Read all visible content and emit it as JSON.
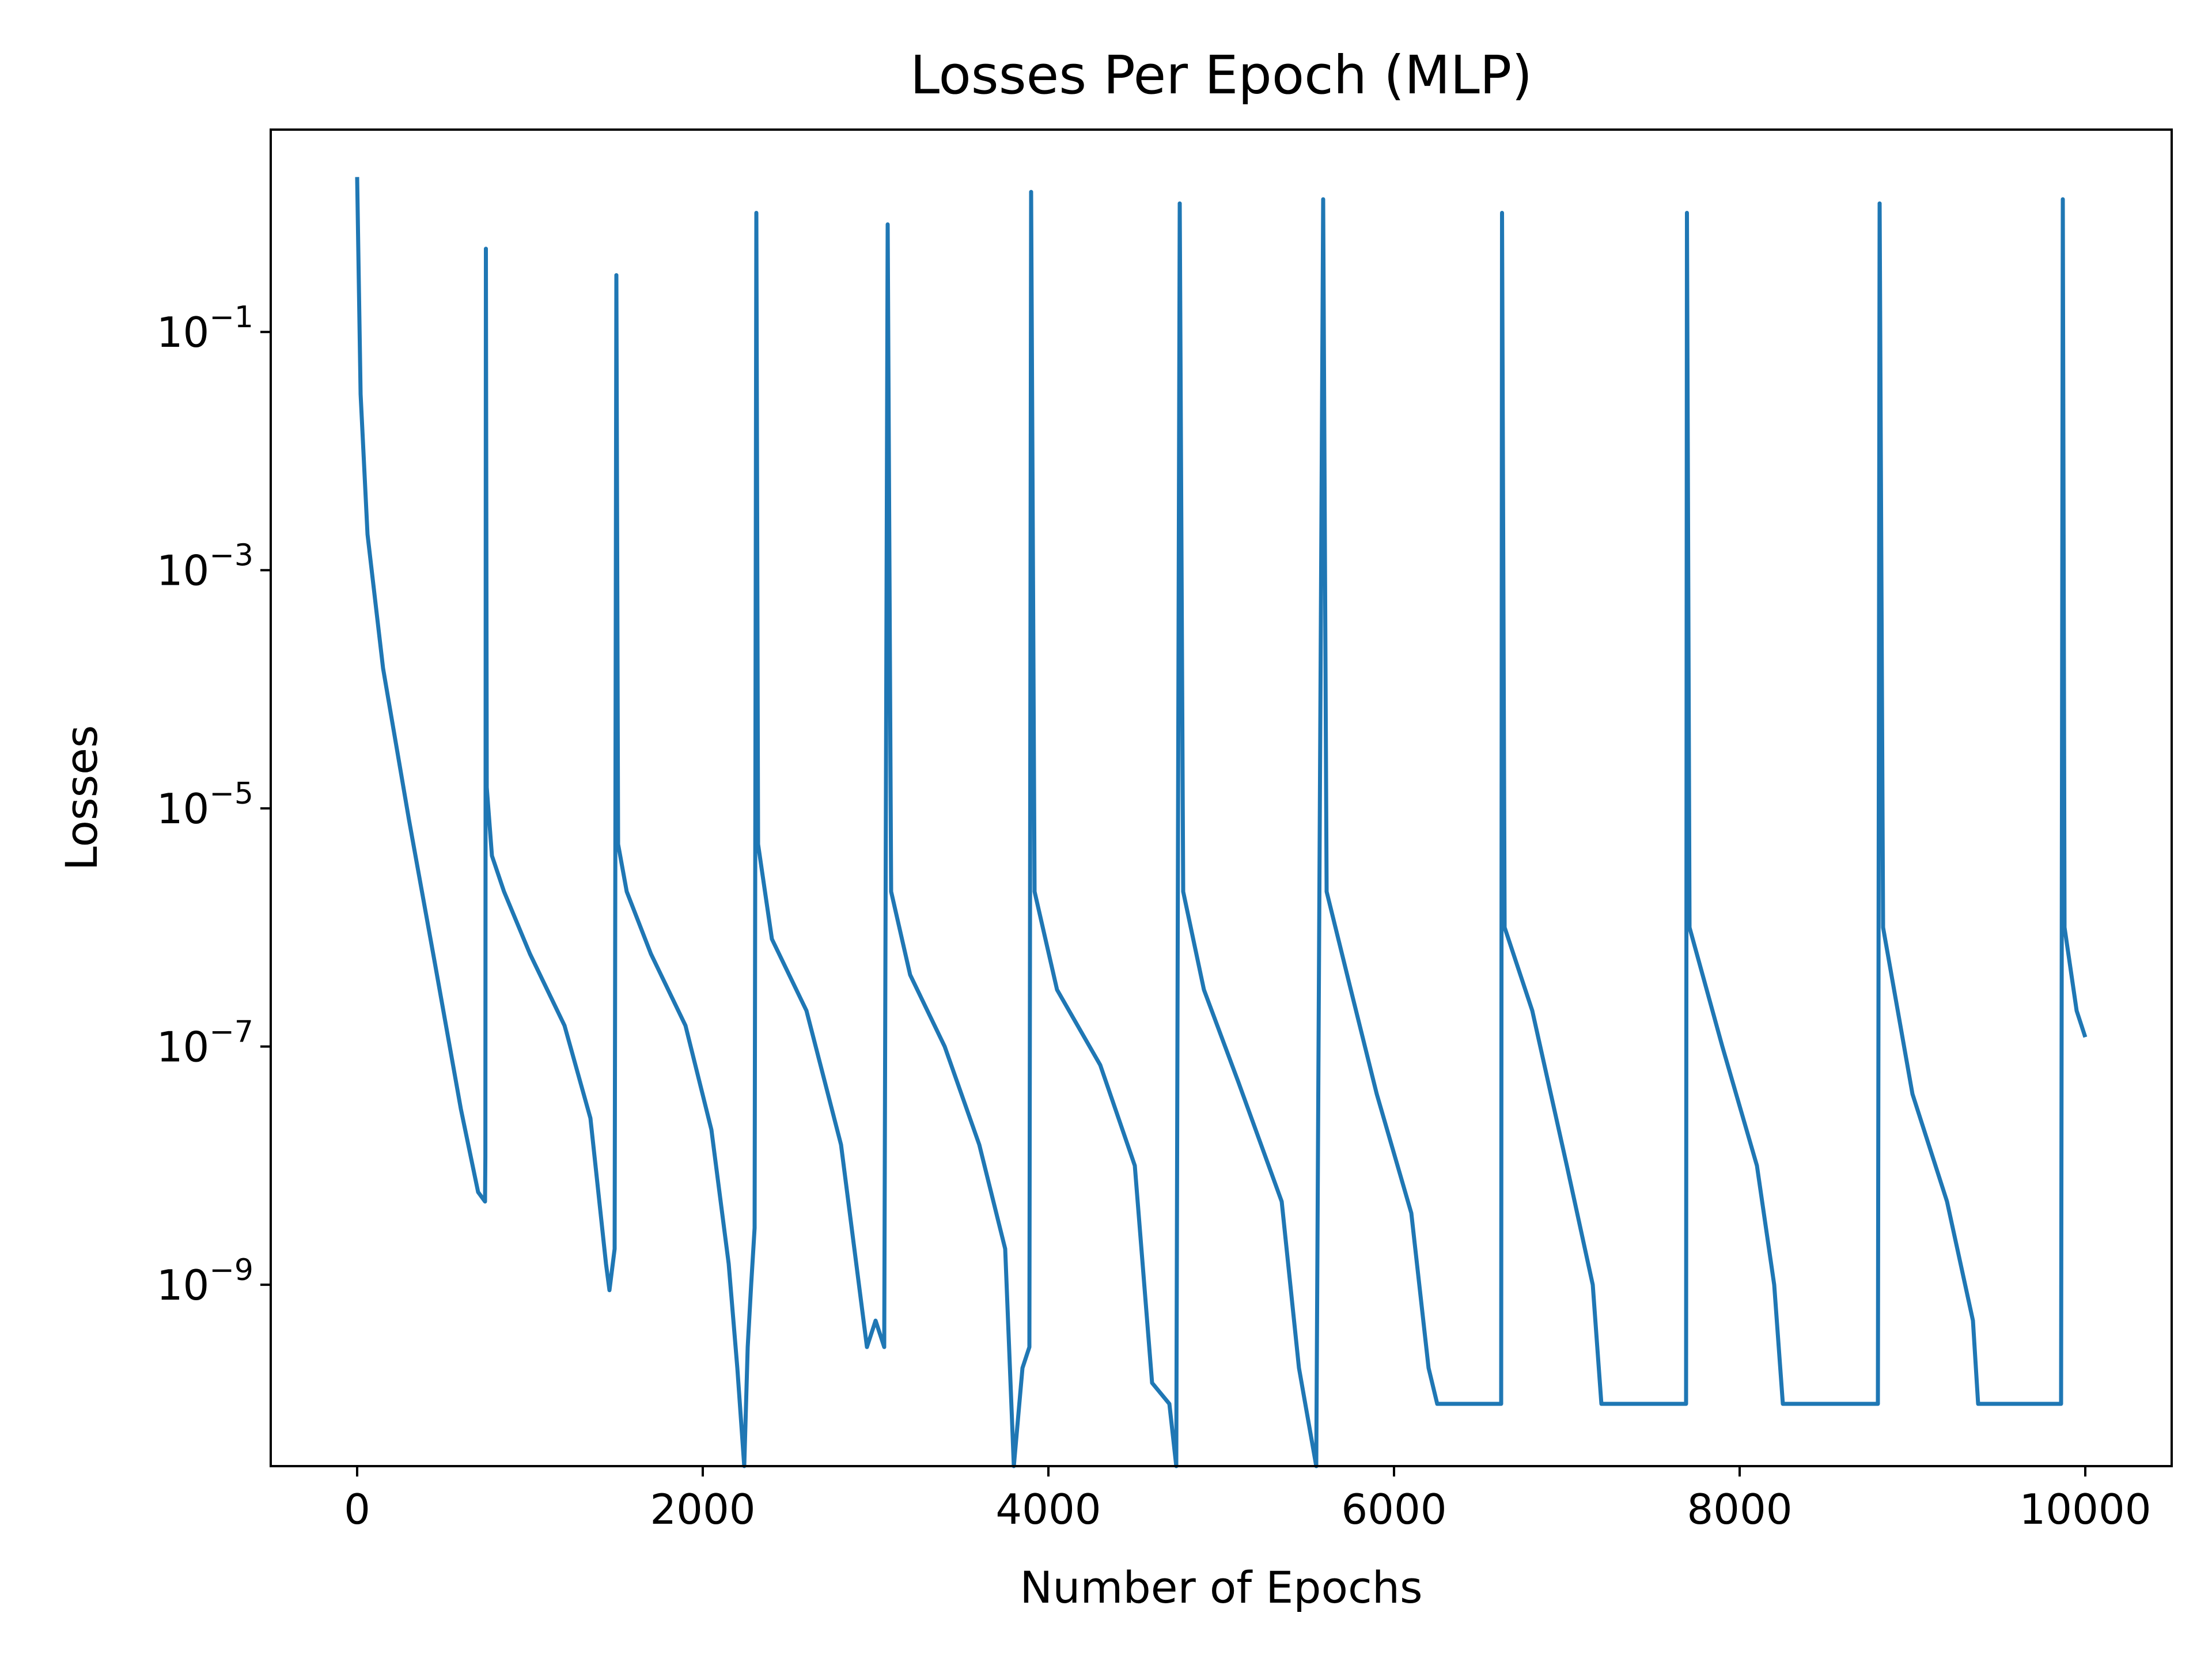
{
  "chart_data": {
    "type": "line",
    "title": "Losses Per Epoch (MLP)",
    "xlabel": "Number of Epochs",
    "ylabel": "Losses",
    "xscale": "linear",
    "yscale": "log",
    "xlim": [
      -500,
      10500
    ],
    "ylim": [
      3e-11,
      5
    ],
    "grid": false,
    "legend": "none",
    "x_ticks": [
      {
        "value": 0,
        "label": "0"
      },
      {
        "value": 2000,
        "label": "2000"
      },
      {
        "value": 4000,
        "label": "4000"
      },
      {
        "value": 6000,
        "label": "6000"
      },
      {
        "value": 8000,
        "label": "8000"
      },
      {
        "value": 10000,
        "label": "10000"
      }
    ],
    "y_ticks": [
      {
        "value": 0.1,
        "base": "10",
        "exp": "−1"
      },
      {
        "value": 0.001,
        "base": "10",
        "exp": "−3"
      },
      {
        "value": 1e-05,
        "base": "10",
        "exp": "−5"
      },
      {
        "value": 1e-07,
        "base": "10",
        "exp": "−7"
      },
      {
        "value": 1e-09,
        "base": "10",
        "exp": "−9"
      }
    ],
    "series": [
      {
        "color": "#1f77b4",
        "points": [
          [
            0,
            2.0
          ],
          [
            20,
            0.03
          ],
          [
            60,
            0.002
          ],
          [
            150,
            0.00015
          ],
          [
            300,
            8e-06
          ],
          [
            450,
            5e-07
          ],
          [
            600,
            3e-08
          ],
          [
            700,
            6e-09
          ],
          [
            740,
            5e-09
          ],
          [
            742,
            1.2e-08
          ],
          [
            745,
            0.5
          ],
          [
            750,
            1.5e-05
          ],
          [
            780,
            4e-06
          ],
          [
            850,
            2e-06
          ],
          [
            1000,
            6e-07
          ],
          [
            1200,
            1.5e-07
          ],
          [
            1350,
            2.5e-08
          ],
          [
            1440,
            1.5e-09
          ],
          [
            1460,
            9e-10
          ],
          [
            1490,
            2e-09
          ],
          [
            1500,
            0.3
          ],
          [
            1510,
            5e-06
          ],
          [
            1560,
            2e-06
          ],
          [
            1700,
            6e-07
          ],
          [
            1900,
            1.5e-07
          ],
          [
            2050,
            2e-08
          ],
          [
            2150,
            1.5e-09
          ],
          [
            2200,
            2e-10
          ],
          [
            2240,
            3e-11
          ],
          [
            2260,
            3e-10
          ],
          [
            2280,
            1e-09
          ],
          [
            2300,
            3e-09
          ],
          [
            2310,
            1.0
          ],
          [
            2320,
            5e-06
          ],
          [
            2400,
            8e-07
          ],
          [
            2600,
            2e-07
          ],
          [
            2800,
            1.5e-08
          ],
          [
            2950,
            3e-10
          ],
          [
            3000,
            5e-10
          ],
          [
            3050,
            3e-10
          ],
          [
            3070,
            0.8
          ],
          [
            3090,
            2e-06
          ],
          [
            3200,
            4e-07
          ],
          [
            3400,
            1e-07
          ],
          [
            3600,
            1.5e-08
          ],
          [
            3750,
            2e-09
          ],
          [
            3800,
            3e-11
          ],
          [
            3850,
            2e-10
          ],
          [
            3890,
            3e-10
          ],
          [
            3900,
            1.5
          ],
          [
            3920,
            2e-06
          ],
          [
            4050,
            3e-07
          ],
          [
            4300,
            7e-08
          ],
          [
            4500,
            1e-08
          ],
          [
            4600,
            1.5e-10
          ],
          [
            4700,
            1e-10
          ],
          [
            4740,
            3e-11
          ],
          [
            4760,
            1.2
          ],
          [
            4780,
            2e-06
          ],
          [
            4900,
            3e-07
          ],
          [
            5100,
            5e-08
          ],
          [
            5350,
            5e-09
          ],
          [
            5450,
            2e-10
          ],
          [
            5550,
            3e-11
          ],
          [
            5590,
            1.3
          ],
          [
            5610,
            2e-06
          ],
          [
            5750,
            3e-07
          ],
          [
            5900,
            4e-08
          ],
          [
            6100,
            4e-09
          ],
          [
            6200,
            2e-10
          ],
          [
            6250,
            1e-10
          ],
          [
            6620,
            1e-10
          ],
          [
            6625,
            1.0
          ],
          [
            6640,
            1e-06
          ],
          [
            6800,
            2e-07
          ],
          [
            7000,
            1e-08
          ],
          [
            7150,
            1e-09
          ],
          [
            7200,
            1e-10
          ],
          [
            7690,
            1e-10
          ],
          [
            7695,
            1.0
          ],
          [
            7710,
            1e-06
          ],
          [
            7900,
            1e-07
          ],
          [
            8100,
            1e-08
          ],
          [
            8200,
            1e-09
          ],
          [
            8250,
            1e-10
          ],
          [
            8800,
            1e-10
          ],
          [
            8810,
            1.2
          ],
          [
            8830,
            1e-06
          ],
          [
            9000,
            4e-08
          ],
          [
            9200,
            5e-09
          ],
          [
            9350,
            5e-10
          ],
          [
            9380,
            1e-10
          ],
          [
            9860,
            1e-10
          ],
          [
            9870,
            1.3
          ],
          [
            9880,
            1e-06
          ],
          [
            9950,
            2e-07
          ],
          [
            10000,
            1.2e-07
          ]
        ]
      }
    ]
  }
}
